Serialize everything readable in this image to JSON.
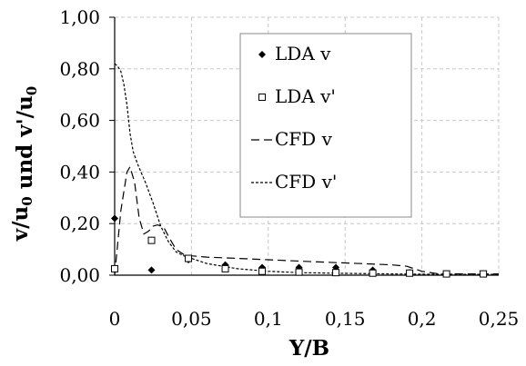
{
  "chart_data": {
    "type": "line",
    "xlabel": "Y/B",
    "ylabel": "v/u0 und v'/u0",
    "xlim": [
      0,
      0.25
    ],
    "ylim": [
      0,
      1.0
    ],
    "x_ticks": [
      "0",
      "0,05",
      "0,1",
      "0,15",
      "0,2",
      "0,25"
    ],
    "y_ticks": [
      "0,00",
      "0,20",
      "0,40",
      "0,60",
      "0,80",
      "1,00"
    ],
    "grid": "dashed",
    "legend_position": "top-right",
    "series": [
      {
        "name": "LDA v",
        "marker": "diamond-filled",
        "style": "markers",
        "x": [
          0,
          0.024,
          0.048,
          0.072,
          0.096,
          0.12,
          0.144,
          0.168,
          0.192,
          0.216,
          0.24
        ],
        "y": [
          0.22,
          0.02,
          0.06,
          0.04,
          0.03,
          0.03,
          0.03,
          0.02,
          0.01,
          0.005,
          0.005
        ]
      },
      {
        "name": "LDA v'",
        "marker": "square-open",
        "style": "markers",
        "x": [
          0,
          0.024,
          0.048,
          0.072,
          0.096,
          0.12,
          0.144,
          0.168,
          0.192,
          0.216,
          0.24
        ],
        "y": [
          0.025,
          0.135,
          0.065,
          0.025,
          0.015,
          0.012,
          0.01,
          0.008,
          0.008,
          0.005,
          0.005
        ]
      },
      {
        "name": "CFD v",
        "style": "long-dash",
        "x": [
          0,
          0.004,
          0.008,
          0.01,
          0.013,
          0.016,
          0.019,
          0.022,
          0.025,
          0.028,
          0.032,
          0.036,
          0.04,
          0.045,
          0.05,
          0.06,
          0.08,
          0.1,
          0.13,
          0.16,
          0.18,
          0.19,
          0.2,
          0.21,
          0.23,
          0.25
        ],
        "y": [
          0.0,
          0.25,
          0.4,
          0.42,
          0.36,
          0.22,
          0.16,
          0.17,
          0.19,
          0.195,
          0.185,
          0.14,
          0.1,
          0.08,
          0.075,
          0.07,
          0.065,
          0.06,
          0.052,
          0.045,
          0.04,
          0.035,
          0.015,
          0.006,
          0.005,
          0.005
        ]
      },
      {
        "name": "CFD v'",
        "style": "short-dash",
        "x": [
          0,
          0.002,
          0.004,
          0.006,
          0.008,
          0.01,
          0.012,
          0.015,
          0.02,
          0.025,
          0.03,
          0.035,
          0.04,
          0.045,
          0.05,
          0.06,
          0.07,
          0.08,
          0.1,
          0.12,
          0.15,
          0.18,
          0.2,
          0.23,
          0.25
        ],
        "y": [
          0.82,
          0.81,
          0.79,
          0.74,
          0.66,
          0.55,
          0.48,
          0.43,
          0.36,
          0.28,
          0.19,
          0.13,
          0.09,
          0.075,
          0.065,
          0.045,
          0.035,
          0.025,
          0.015,
          0.01,
          0.007,
          0.005,
          0.004,
          0.003,
          0.003
        ]
      }
    ]
  }
}
